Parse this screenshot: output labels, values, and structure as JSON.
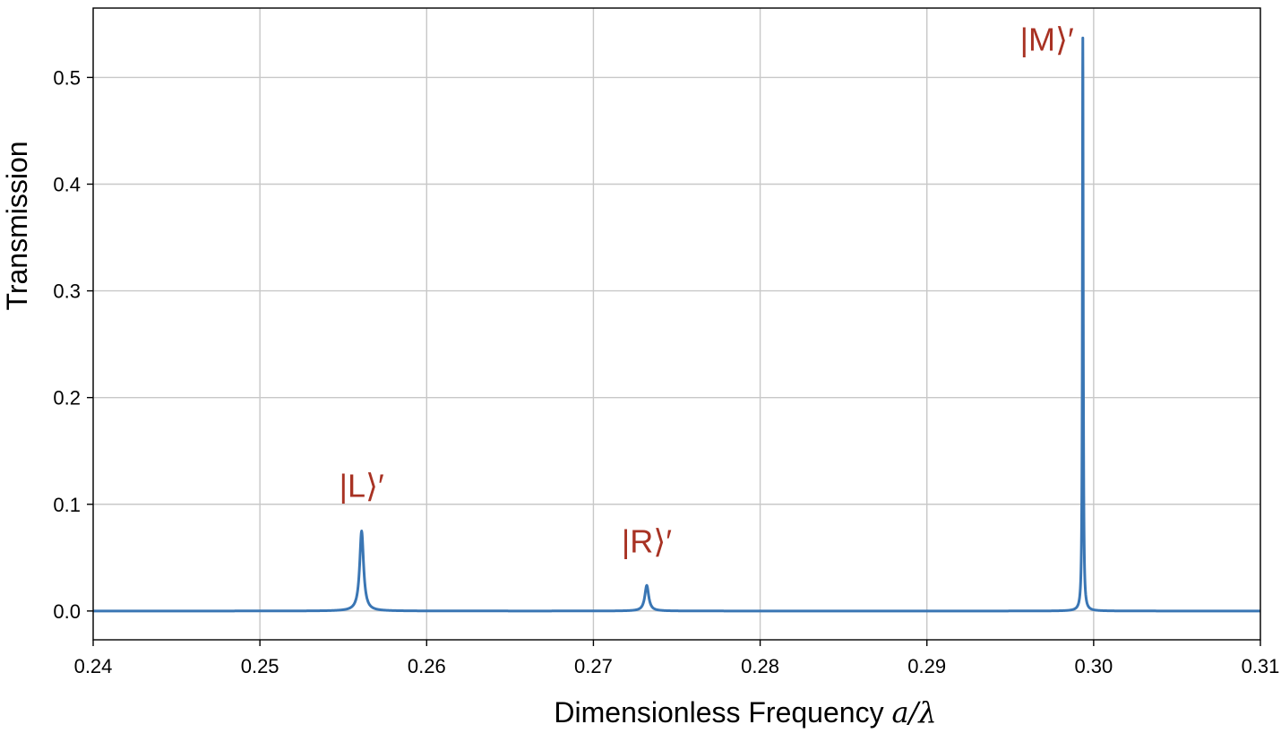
{
  "chart_data": {
    "type": "line",
    "title": "",
    "xlabel_text": "Dimensionless Frequency ",
    "xlabel_math": "a/λ",
    "ylabel": "Transmission",
    "xlim": [
      0.24,
      0.31
    ],
    "ylim": [
      -0.027,
      0.565
    ],
    "x_ticks": [
      0.24,
      0.25,
      0.26,
      0.27,
      0.28,
      0.29,
      0.3,
      0.31
    ],
    "x_tick_labels": [
      "0.24",
      "0.25",
      "0.26",
      "0.27",
      "0.28",
      "0.29",
      "0.30",
      "0.31"
    ],
    "y_ticks": [
      0.0,
      0.1,
      0.2,
      0.3,
      0.4,
      0.5
    ],
    "y_tick_labels": [
      "0.0",
      "0.1",
      "0.2",
      "0.3",
      "0.4",
      "0.5"
    ],
    "grid": true,
    "line_color": "#3a76b4",
    "label_color": "#a83223",
    "series": [
      {
        "peaks": [
          {
            "x": 0.2561,
            "y": 0.075,
            "width": 0.00014
          },
          {
            "x": 0.2732,
            "y": 0.024,
            "width": 0.00014
          },
          {
            "x": 0.29935,
            "y": 0.537,
            "width": 3e-05
          }
        ]
      }
    ],
    "annotations": [
      {
        "text": "|L⟩′",
        "x": 0.2561,
        "y": 0.107
      },
      {
        "text": "|R⟩′",
        "x": 0.2732,
        "y": 0.055
      },
      {
        "text": "|M⟩′",
        "x": 0.2972,
        "y": 0.525
      }
    ]
  }
}
